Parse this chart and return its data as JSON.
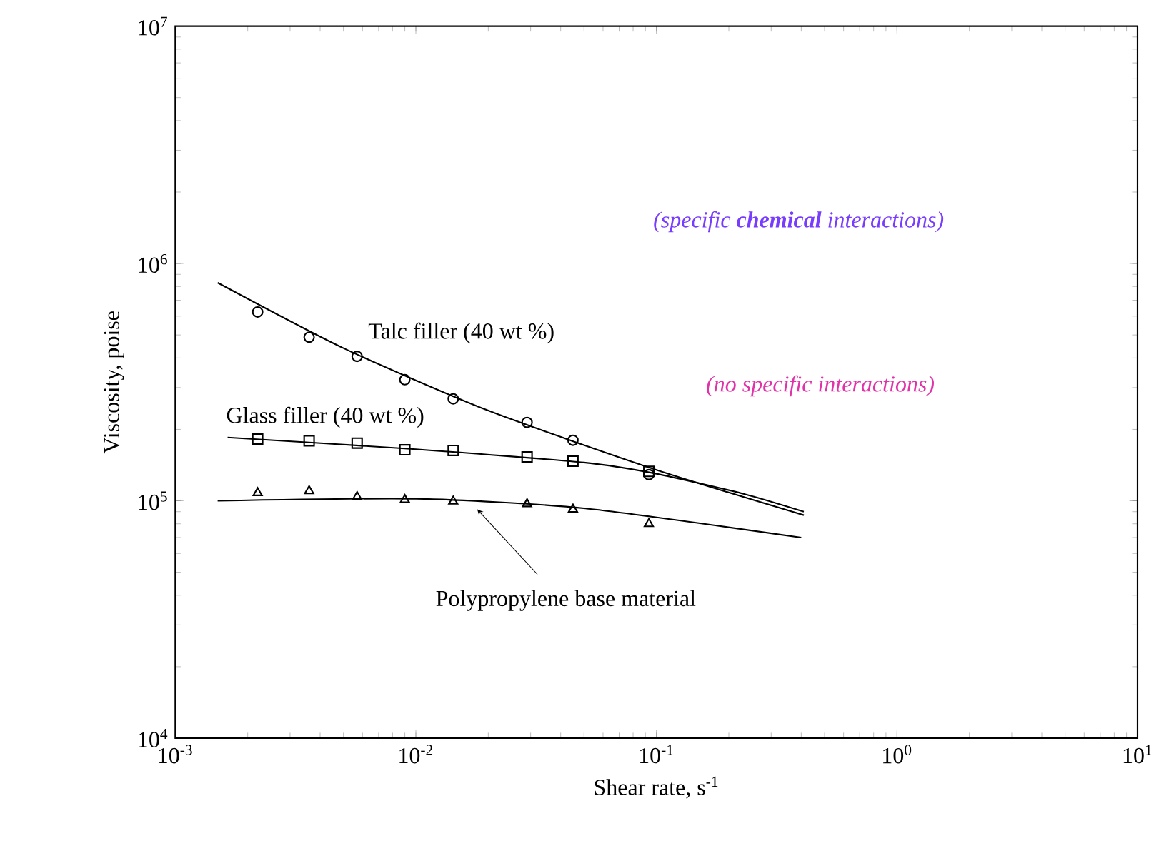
{
  "chart_data": {
    "type": "scatter",
    "xlabel": "Shear rate, s$^{-1}$",
    "ylabel": "Viscosity, poise",
    "log": "xy",
    "xlim": [
      0.001,
      10
    ],
    "ylim": [
      10000,
      10000000
    ],
    "xticks": [
      {
        "value": 0.001,
        "label": "10$^{-3}$"
      },
      {
        "value": 0.01,
        "label": "10$^{-2}$"
      },
      {
        "value": 0.1,
        "label": "10$^{-1}$"
      },
      {
        "value": 1,
        "label": "10$^{0}$"
      },
      {
        "value": 10,
        "label": "10$^{1}$"
      }
    ],
    "yticks": [
      {
        "value": 10000,
        "label": "10$^{4}$"
      },
      {
        "value": 100000,
        "label": "10$^{5}$"
      },
      {
        "value": 1000000,
        "label": "10$^{6}$"
      },
      {
        "value": 10000000,
        "label": "10$^{7}$"
      }
    ],
    "grid": false,
    "legend": false,
    "annotations": [
      "(specific **chemical** interactions)",
      "(no specific interactions)"
    ],
    "series": [
      {
        "marker": "circle",
        "color": "#000000",
        "x": [
          0.0022,
          0.0036,
          0.0057,
          0.009,
          0.0143,
          0.029,
          0.045,
          0.093
        ],
        "values": [
          625000,
          489000,
          406000,
          324000,
          269000,
          214000,
          180000,
          129000
        ]
      },
      {
        "marker": "square",
        "color": "#000000",
        "x": [
          0.0022,
          0.0036,
          0.0057,
          0.009,
          0.0143,
          0.029,
          0.045,
          0.093
        ],
        "values": [
          182000,
          179000,
          175000,
          164000,
          163000,
          153000,
          147000,
          133000
        ]
      },
      {
        "marker": "triangle",
        "color": "#000000",
        "x": [
          0.0022,
          0.0036,
          0.0057,
          0.009,
          0.0143,
          0.029,
          0.045,
          0.093
        ],
        "values": [
          108000,
          110000,
          104000,
          101000,
          99500,
          97000,
          92000,
          80000
        ]
      },
      {
        "type": "line",
        "name": "Talc filler (40 wt %)",
        "color": "#000000",
        "x": [
          0.0015,
          0.005,
          0.02,
          0.1,
          0.41
        ],
        "values": [
          830000,
          440000,
          240000,
          135000,
          87000
        ]
      },
      {
        "type": "line",
        "name": "Glass filler (40 wt %)",
        "color": "#000000",
        "x": [
          0.00165,
          0.01,
          0.05,
          0.1,
          0.23,
          0.41
        ],
        "values": [
          185000,
          165000,
          145000,
          130000,
          107000,
          90000
        ]
      },
      {
        "type": "line",
        "name": "Polypropylene base material",
        "color": "#000000",
        "x": [
          0.0015,
          0.01,
          0.05,
          0.4
        ],
        "values": [
          100000,
          102000,
          93000,
          70000
        ]
      }
    ]
  }
}
